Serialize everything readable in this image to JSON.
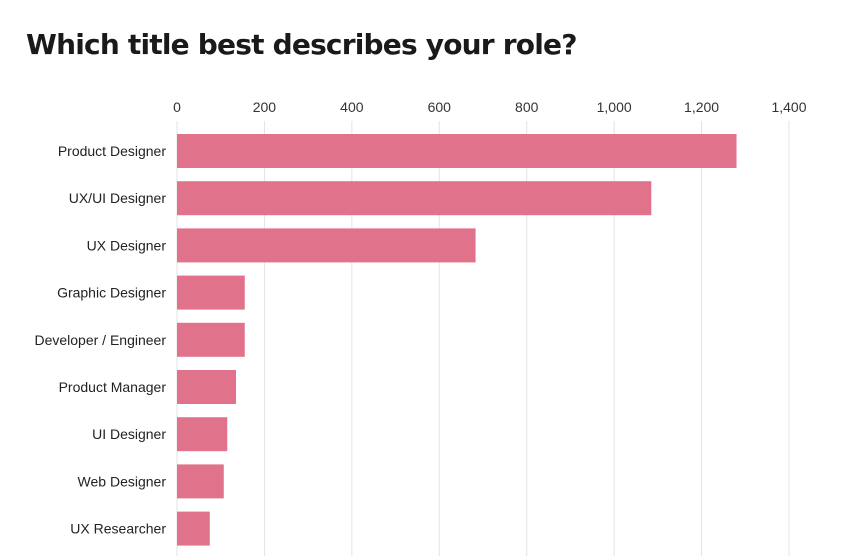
{
  "chart_data": {
    "type": "bar",
    "orientation": "horizontal",
    "title": "Which title best describes your role?",
    "xlabel": "",
    "ylabel": "",
    "xlim": [
      0,
      1400
    ],
    "ticks": [
      0,
      200,
      400,
      600,
      800,
      1000,
      1200,
      1400
    ],
    "tick_labels": [
      "0",
      "200",
      "400",
      "600",
      "800",
      "1,000",
      "1,200",
      "1,400"
    ],
    "tick_position": "top",
    "grid": true,
    "color": "#e0728b",
    "categories": [
      "Product Designer",
      "UX/UI Designer",
      "UX Designer",
      "Graphic Designer",
      "Developer / Engineer",
      "Product Manager",
      "UI Designer",
      "Web Designer",
      "UX Researcher"
    ],
    "values": [
      1280,
      1085,
      683,
      155,
      155,
      135,
      115,
      107,
      75
    ]
  }
}
